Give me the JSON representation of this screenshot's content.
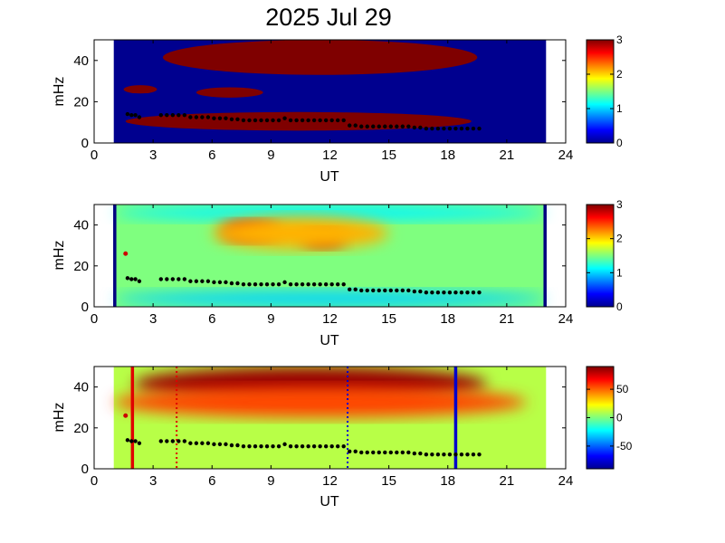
{
  "figure": {
    "title": "2025 Jul 29"
  },
  "chart_data": [
    {
      "type": "heatmap",
      "xlabel": "UT",
      "ylabel": "mHz",
      "xlim": [
        0,
        24
      ],
      "ylim": [
        0,
        50
      ],
      "xticks": [
        0,
        3,
        6,
        9,
        12,
        15,
        18,
        21,
        24
      ],
      "yticks": [
        0,
        20,
        40
      ],
      "colorbar": {
        "range": [
          0,
          3
        ],
        "ticks": [
          0,
          1,
          2,
          3
        ],
        "colormap": "jet"
      },
      "data_extent_ut": [
        1,
        23
      ],
      "background_value": 0,
      "high_regions": [
        {
          "label": "upper band",
          "ut_range": [
            3.5,
            19.5
          ],
          "mhz_range": [
            33,
            50
          ],
          "value": 3
        },
        {
          "label": "mid band 1",
          "ut_range": [
            1.5,
            3.2
          ],
          "mhz_range": [
            24,
            28
          ],
          "value": 3
        },
        {
          "label": "mid band 2",
          "ut_range": [
            5.2,
            8.6
          ],
          "mhz_range": [
            22,
            27
          ],
          "value": 3
        },
        {
          "label": "lower band",
          "ut_range": [
            1.6,
            19.2
          ],
          "mhz_range": [
            6,
            15
          ],
          "value": 3
        }
      ],
      "markers": [
        {
          "label": "frequency trace",
          "points_ref": "trace"
        }
      ]
    },
    {
      "type": "heatmap",
      "xlabel": "UT",
      "ylabel": "mHz",
      "xlim": [
        0,
        24
      ],
      "ylim": [
        0,
        50
      ],
      "xticks": [
        0,
        3,
        6,
        9,
        12,
        15,
        18,
        21,
        24
      ],
      "yticks": [
        0,
        20,
        40
      ],
      "colorbar": {
        "range": [
          0,
          3
        ],
        "ticks": [
          0,
          1,
          2,
          3
        ],
        "colormap": "jet"
      },
      "data_extent_ut": [
        1,
        23
      ],
      "background_value": 1.5,
      "high_regions": [
        {
          "label": "peak 1",
          "ut_range": [
            6.5,
            9.5
          ],
          "mhz_range": [
            32,
            42
          ],
          "value": 2.7
        },
        {
          "label": "peak 2",
          "ut_range": [
            10.5,
            12.8
          ],
          "mhz_range": [
            29,
            38
          ],
          "value": 2.8
        },
        {
          "label": "broad upper",
          "ut_range": [
            6,
            15
          ],
          "mhz_range": [
            28,
            44
          ],
          "value": 2.1
        }
      ],
      "low_regions": [
        {
          "label": "low top",
          "ut_range": [
            1,
            23
          ],
          "mhz_range": [
            42,
            50
          ],
          "value": 1.1
        },
        {
          "label": "low bottom",
          "ut_range": [
            1,
            23
          ],
          "mhz_range": [
            0,
            8
          ],
          "value": 1.0
        }
      ],
      "vertical_lines": [
        {
          "ut": 1.05,
          "color": "#000080"
        },
        {
          "ut": 22.95,
          "color": "#000080"
        }
      ],
      "markers": [
        {
          "label": "frequency trace",
          "points_ref": "trace"
        }
      ]
    },
    {
      "type": "heatmap",
      "xlabel": "UT",
      "ylabel": "mHz",
      "xlim": [
        0,
        24
      ],
      "ylim": [
        0,
        50
      ],
      "xticks": [
        0,
        3,
        6,
        9,
        12,
        15,
        18,
        21,
        24
      ],
      "yticks": [
        0,
        20,
        40
      ],
      "colorbar": {
        "range": [
          -90,
          90
        ],
        "ticks": [
          50,
          0,
          -50
        ],
        "colormap": "jet"
      },
      "data_extent_ut": [
        1,
        23
      ],
      "background_value": 10,
      "high_regions": [
        {
          "label": "upper saturated",
          "ut_range": [
            2,
            20
          ],
          "mhz_range": [
            33,
            50
          ],
          "value": 85
        },
        {
          "label": "upper mid",
          "ut_range": [
            1,
            22
          ],
          "mhz_range": [
            25,
            40
          ],
          "value": 55
        }
      ],
      "vertical_lines": [
        {
          "ut": 1.95,
          "color": "#e00000",
          "style": "solid"
        },
        {
          "ut": 4.2,
          "color": "#e00000",
          "style": "dotted"
        },
        {
          "ut": 12.9,
          "color": "#0000cc",
          "style": "dotted"
        },
        {
          "ut": 18.4,
          "color": "#0000cc",
          "style": "solid"
        }
      ],
      "markers": [
        {
          "label": "frequency trace",
          "points_ref": "trace"
        }
      ]
    }
  ],
  "trace": {
    "ut": [
      1.7,
      1.9,
      2.1,
      2.3,
      3.4,
      3.7,
      4.0,
      4.3,
      4.6,
      4.9,
      5.2,
      5.5,
      5.8,
      6.1,
      6.4,
      6.7,
      7.0,
      7.3,
      7.6,
      7.9,
      8.2,
      8.5,
      8.8,
      9.1,
      9.4,
      9.7,
      10.0,
      10.3,
      10.6,
      10.9,
      11.2,
      11.5,
      11.8,
      12.1,
      12.4,
      12.7,
      13.0,
      13.3,
      13.6,
      13.9,
      14.2,
      14.5,
      14.8,
      15.1,
      15.4,
      15.7,
      16.0,
      16.3,
      16.6,
      16.9,
      17.2,
      17.5,
      17.8,
      18.1,
      18.4,
      18.7,
      19.0,
      19.3,
      19.6
    ],
    "mhz": [
      14,
      13.5,
      13.5,
      12.5,
      13.5,
      13.5,
      13.5,
      13.5,
      13.5,
      12.5,
      12.5,
      12.5,
      12.5,
      12,
      12,
      12,
      11.5,
      11.5,
      11,
      11,
      11,
      11,
      11,
      11,
      11,
      12,
      11,
      11,
      11,
      11,
      11,
      11,
      11,
      11,
      11,
      11,
      8.5,
      8.5,
      8,
      8,
      8,
      8,
      8,
      8,
      8,
      8,
      8,
      7.5,
      7.5,
      7,
      7,
      7,
      7,
      7,
      7,
      7,
      7,
      7,
      7
    ]
  },
  "annotations": {
    "red_point_mhz": 26,
    "red_point_ut": 1.6
  }
}
